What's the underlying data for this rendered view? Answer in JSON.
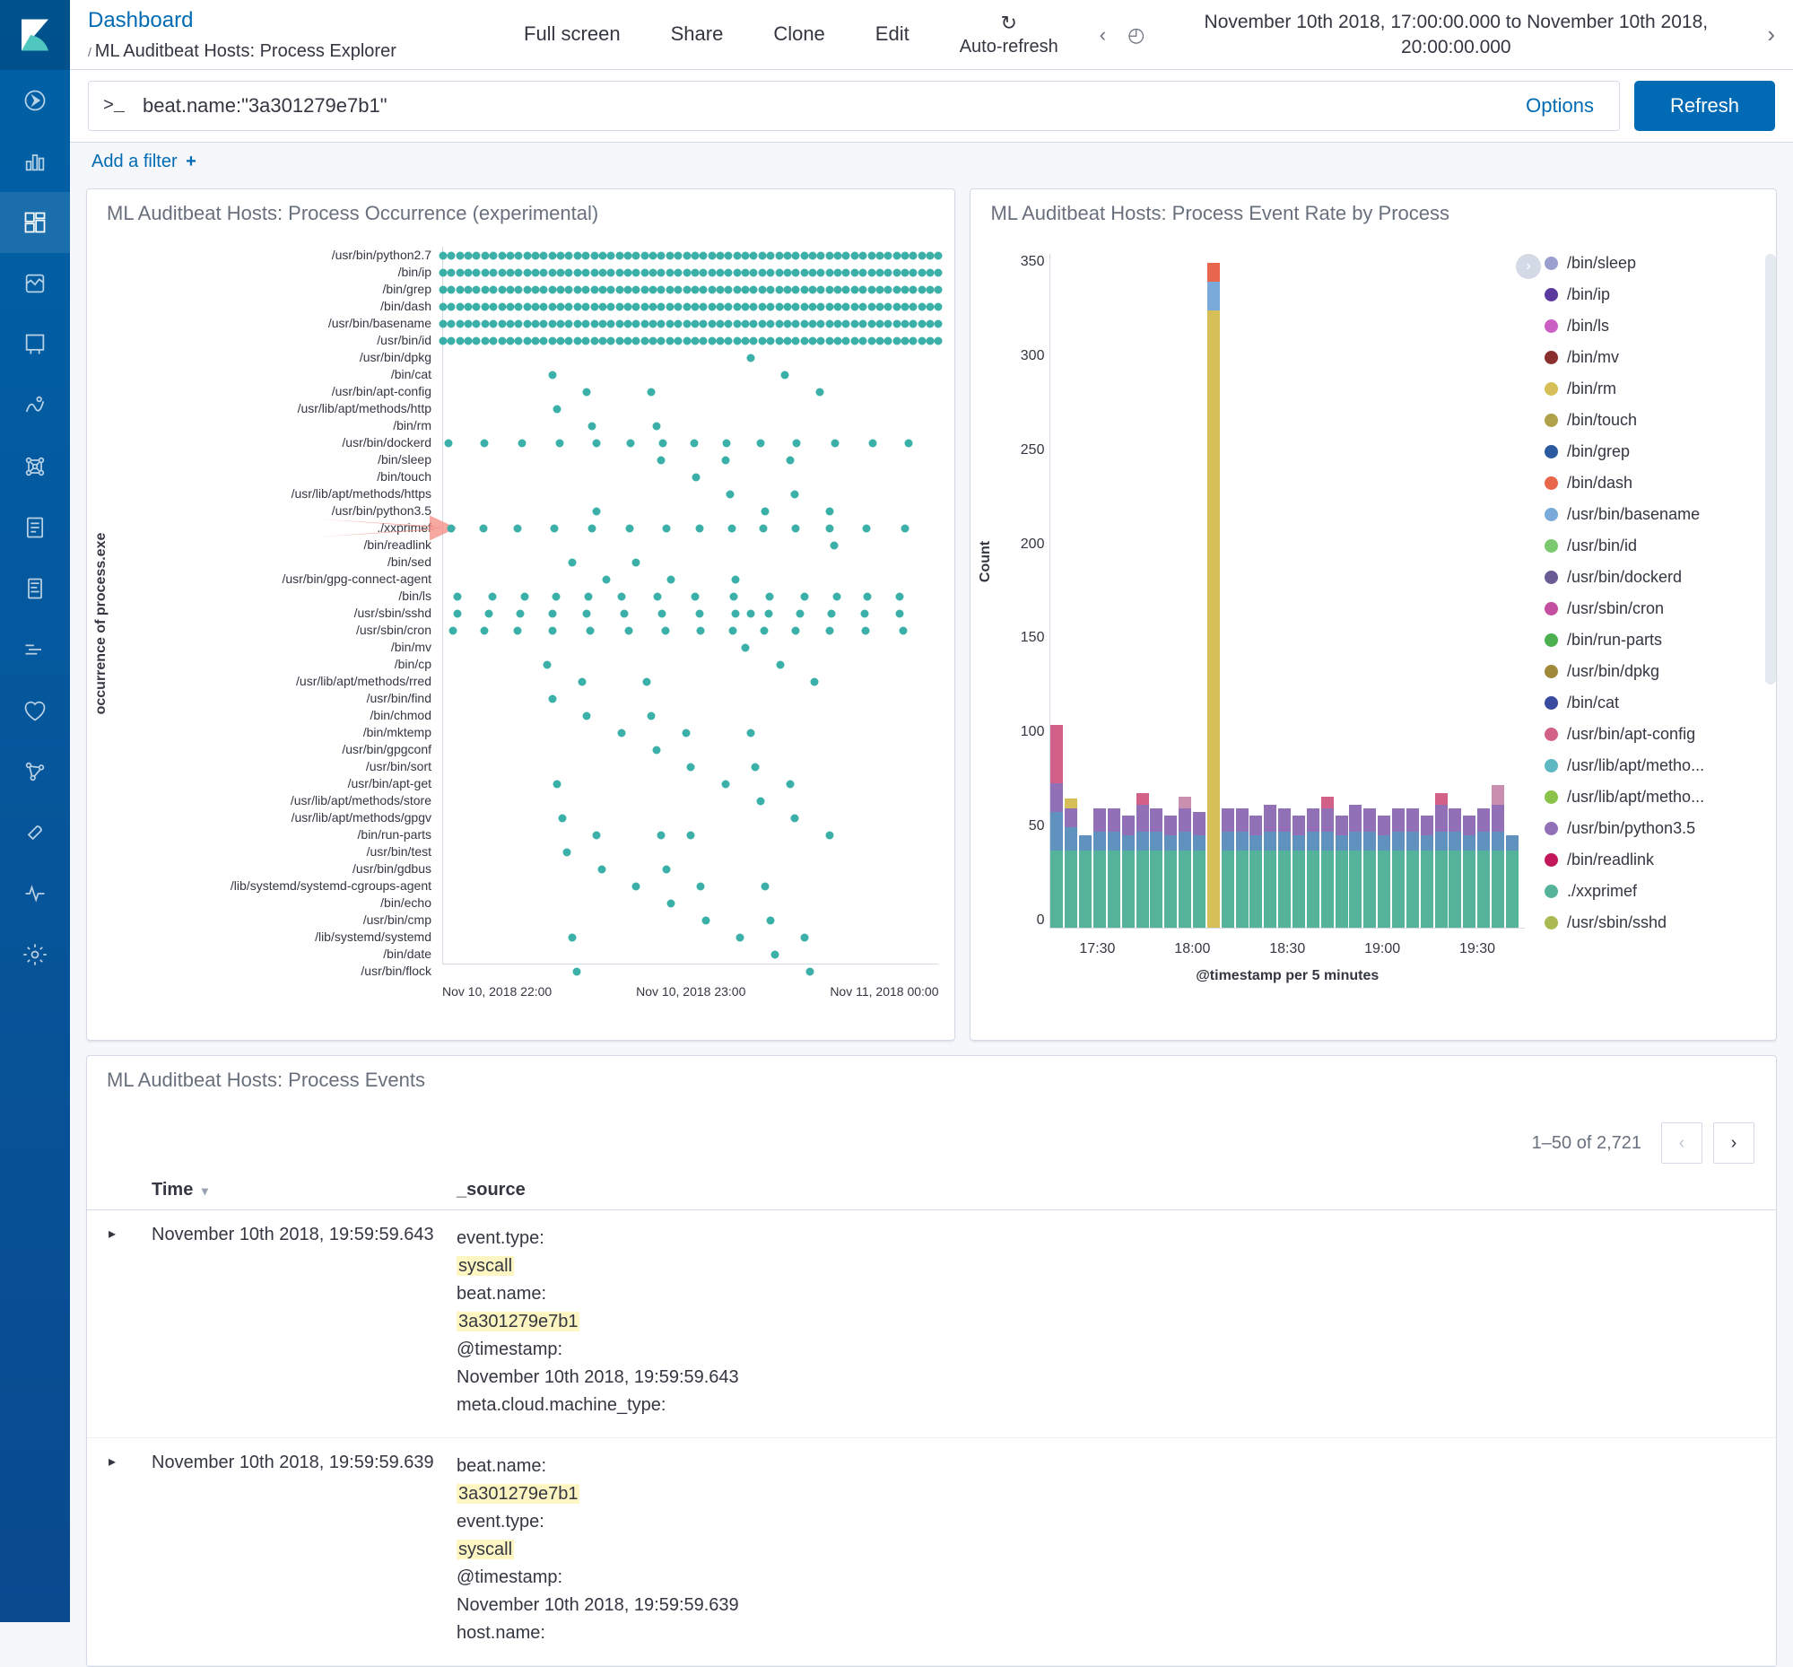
{
  "breadcrumb": {
    "root": "Dashboard",
    "slash": "/",
    "current": "ML Auditbeat Hosts: Process Explorer"
  },
  "toolbar": {
    "fullscreen": "Full screen",
    "share": "Share",
    "clone": "Clone",
    "edit": "Edit",
    "autorefresh": "Auto-refresh"
  },
  "time": {
    "range": "November 10th 2018, 17:00:00.000 to November 10th 2018, 20:00:00.000"
  },
  "query": {
    "prompt": ">_",
    "value": "beat.name:\"3a301279e7b1\"",
    "options": "Options"
  },
  "refresh_label": "Refresh",
  "filter": {
    "add": "Add a filter"
  },
  "panels": {
    "scatter_title": "ML Auditbeat Hosts: Process Occurrence (experimental)",
    "bar_title": "ML Auditbeat Hosts: Process Event Rate by Process",
    "events_title": "ML Auditbeat Hosts: Process Events"
  },
  "scatter": {
    "y_axis_title": "occurrence of process.exe",
    "y_labels": [
      "/usr/bin/python2.7",
      "/bin/ip",
      "/bin/grep",
      "/bin/dash",
      "/usr/bin/basename",
      "/usr/bin/id",
      "/usr/bin/dpkg",
      "/bin/cat",
      "/usr/bin/apt-config",
      "/usr/lib/apt/methods/http",
      "/bin/rm",
      "/usr/bin/dockerd",
      "/bin/sleep",
      "/bin/touch",
      "/usr/lib/apt/methods/https",
      "/usr/bin/python3.5",
      "./xxprimef",
      "/bin/readlink",
      "/bin/sed",
      "/usr/bin/gpg-connect-agent",
      "/bin/ls",
      "/usr/sbin/sshd",
      "/usr/sbin/cron",
      "/bin/mv",
      "/bin/cp",
      "/usr/lib/apt/methods/rred",
      "/usr/bin/find",
      "/bin/chmod",
      "/bin/mktemp",
      "/usr/bin/gpgconf",
      "/usr/bin/sort",
      "/usr/bin/apt-get",
      "/usr/lib/apt/methods/store",
      "/usr/lib/apt/methods/gpgv",
      "/bin/run-parts",
      "/usr/bin/test",
      "/usr/bin/gdbus",
      "/lib/systemd/systemd-cgroups-agent",
      "/bin/echo",
      "/usr/bin/cmp",
      "/lib/systemd/systemd",
      "/bin/date",
      "/usr/bin/flock"
    ],
    "x_labels": [
      "Nov 10, 2018 22:00",
      "Nov 10, 2018 23:00",
      "Nov 11, 2018 00:00"
    ],
    "dot_color": "#3ab0a8",
    "dense_rows": [
      0,
      1,
      2,
      3,
      4,
      5
    ],
    "mid_rows": [
      11,
      16,
      20,
      21,
      22
    ],
    "sparse_rows": [
      6,
      7,
      8,
      9,
      10,
      12,
      13,
      14,
      15,
      17,
      18,
      19,
      23,
      24,
      25,
      26,
      27,
      28,
      29,
      30,
      31,
      32,
      33,
      34,
      35,
      36,
      37,
      38,
      39,
      40,
      41,
      42
    ],
    "arrow_row": 16,
    "arrow_color": "#f38b82"
  },
  "bars": {
    "y_axis_title": "Count",
    "y_ticks": [
      "350",
      "300",
      "250",
      "200",
      "150",
      "100",
      "50",
      "0"
    ],
    "y_max": 350,
    "x_labels": [
      "17:30",
      "18:00",
      "18:30",
      "19:00",
      "19:30"
    ],
    "x_title": "@timestamp per 5 minutes",
    "columns": [
      {
        "x": 0.0,
        "segs": [
          {
            "c": "#54b399",
            "v": 40
          },
          {
            "c": "#6092c0",
            "v": 20
          },
          {
            "c": "#9170b8",
            "v": 15
          },
          {
            "c": "#d36086",
            "v": 30
          }
        ]
      },
      {
        "x": 0.03,
        "segs": [
          {
            "c": "#54b399",
            "v": 40
          },
          {
            "c": "#6092c0",
            "v": 12
          },
          {
            "c": "#9170b8",
            "v": 10
          },
          {
            "c": "#d6bf57",
            "v": 5
          }
        ]
      },
      {
        "x": 0.06,
        "segs": [
          {
            "c": "#54b399",
            "v": 40
          },
          {
            "c": "#6092c0",
            "v": 8
          }
        ]
      },
      {
        "x": 0.09,
        "segs": [
          {
            "c": "#54b399",
            "v": 40
          },
          {
            "c": "#6092c0",
            "v": 10
          },
          {
            "c": "#9170b8",
            "v": 12
          }
        ]
      },
      {
        "x": 0.12,
        "segs": [
          {
            "c": "#54b399",
            "v": 40
          },
          {
            "c": "#6092c0",
            "v": 10
          },
          {
            "c": "#9170b8",
            "v": 12
          }
        ]
      },
      {
        "x": 0.15,
        "segs": [
          {
            "c": "#54b399",
            "v": 40
          },
          {
            "c": "#6092c0",
            "v": 8
          },
          {
            "c": "#9170b8",
            "v": 10
          }
        ]
      },
      {
        "x": 0.18,
        "segs": [
          {
            "c": "#54b399",
            "v": 40
          },
          {
            "c": "#6092c0",
            "v": 10
          },
          {
            "c": "#9170b8",
            "v": 14
          },
          {
            "c": "#d36086",
            "v": 6
          }
        ]
      },
      {
        "x": 0.21,
        "segs": [
          {
            "c": "#54b399",
            "v": 40
          },
          {
            "c": "#6092c0",
            "v": 10
          },
          {
            "c": "#9170b8",
            "v": 12
          }
        ]
      },
      {
        "x": 0.24,
        "segs": [
          {
            "c": "#54b399",
            "v": 40
          },
          {
            "c": "#6092c0",
            "v": 8
          },
          {
            "c": "#9170b8",
            "v": 10
          }
        ]
      },
      {
        "x": 0.27,
        "segs": [
          {
            "c": "#54b399",
            "v": 40
          },
          {
            "c": "#6092c0",
            "v": 10
          },
          {
            "c": "#9170b8",
            "v": 12
          },
          {
            "c": "#ca8eae",
            "v": 6
          }
        ]
      },
      {
        "x": 0.3,
        "segs": [
          {
            "c": "#54b399",
            "v": 40
          },
          {
            "c": "#6092c0",
            "v": 8
          },
          {
            "c": "#9170b8",
            "v": 12
          }
        ]
      },
      {
        "x": 0.33,
        "segs": [
          {
            "c": "#d6bf57",
            "v": 320
          },
          {
            "c": "#79aad9",
            "v": 15
          },
          {
            "c": "#e7664c",
            "v": 10
          }
        ]
      },
      {
        "x": 0.36,
        "segs": [
          {
            "c": "#54b399",
            "v": 40
          },
          {
            "c": "#6092c0",
            "v": 10
          },
          {
            "c": "#9170b8",
            "v": 12
          }
        ]
      },
      {
        "x": 0.39,
        "segs": [
          {
            "c": "#54b399",
            "v": 40
          },
          {
            "c": "#6092c0",
            "v": 10
          },
          {
            "c": "#9170b8",
            "v": 12
          }
        ]
      },
      {
        "x": 0.42,
        "segs": [
          {
            "c": "#54b399",
            "v": 40
          },
          {
            "c": "#6092c0",
            "v": 8
          },
          {
            "c": "#9170b8",
            "v": 10
          }
        ]
      },
      {
        "x": 0.45,
        "segs": [
          {
            "c": "#54b399",
            "v": 40
          },
          {
            "c": "#6092c0",
            "v": 10
          },
          {
            "c": "#9170b8",
            "v": 14
          }
        ]
      },
      {
        "x": 0.48,
        "segs": [
          {
            "c": "#54b399",
            "v": 40
          },
          {
            "c": "#6092c0",
            "v": 10
          },
          {
            "c": "#9170b8",
            "v": 12
          }
        ]
      },
      {
        "x": 0.51,
        "segs": [
          {
            "c": "#54b399",
            "v": 40
          },
          {
            "c": "#6092c0",
            "v": 8
          },
          {
            "c": "#9170b8",
            "v": 10
          }
        ]
      },
      {
        "x": 0.54,
        "segs": [
          {
            "c": "#54b399",
            "v": 40
          },
          {
            "c": "#6092c0",
            "v": 10
          },
          {
            "c": "#9170b8",
            "v": 12
          }
        ]
      },
      {
        "x": 0.57,
        "segs": [
          {
            "c": "#54b399",
            "v": 40
          },
          {
            "c": "#6092c0",
            "v": 10
          },
          {
            "c": "#9170b8",
            "v": 12
          },
          {
            "c": "#d36086",
            "v": 6
          }
        ]
      },
      {
        "x": 0.6,
        "segs": [
          {
            "c": "#54b399",
            "v": 40
          },
          {
            "c": "#6092c0",
            "v": 8
          },
          {
            "c": "#9170b8",
            "v": 10
          }
        ]
      },
      {
        "x": 0.63,
        "segs": [
          {
            "c": "#54b399",
            "v": 40
          },
          {
            "c": "#6092c0",
            "v": 10
          },
          {
            "c": "#9170b8",
            "v": 14
          }
        ]
      },
      {
        "x": 0.66,
        "segs": [
          {
            "c": "#54b399",
            "v": 40
          },
          {
            "c": "#6092c0",
            "v": 10
          },
          {
            "c": "#9170b8",
            "v": 12
          }
        ]
      },
      {
        "x": 0.69,
        "segs": [
          {
            "c": "#54b399",
            "v": 40
          },
          {
            "c": "#6092c0",
            "v": 8
          },
          {
            "c": "#9170b8",
            "v": 10
          }
        ]
      },
      {
        "x": 0.72,
        "segs": [
          {
            "c": "#54b399",
            "v": 40
          },
          {
            "c": "#6092c0",
            "v": 10
          },
          {
            "c": "#9170b8",
            "v": 12
          }
        ]
      },
      {
        "x": 0.75,
        "segs": [
          {
            "c": "#54b399",
            "v": 40
          },
          {
            "c": "#6092c0",
            "v": 10
          },
          {
            "c": "#9170b8",
            "v": 12
          }
        ]
      },
      {
        "x": 0.78,
        "segs": [
          {
            "c": "#54b399",
            "v": 40
          },
          {
            "c": "#6092c0",
            "v": 8
          },
          {
            "c": "#9170b8",
            "v": 10
          }
        ]
      },
      {
        "x": 0.81,
        "segs": [
          {
            "c": "#54b399",
            "v": 40
          },
          {
            "c": "#6092c0",
            "v": 10
          },
          {
            "c": "#9170b8",
            "v": 14
          },
          {
            "c": "#d36086",
            "v": 6
          }
        ]
      },
      {
        "x": 0.84,
        "segs": [
          {
            "c": "#54b399",
            "v": 40
          },
          {
            "c": "#6092c0",
            "v": 10
          },
          {
            "c": "#9170b8",
            "v": 12
          }
        ]
      },
      {
        "x": 0.87,
        "segs": [
          {
            "c": "#54b399",
            "v": 40
          },
          {
            "c": "#6092c0",
            "v": 8
          },
          {
            "c": "#9170b8",
            "v": 10
          }
        ]
      },
      {
        "x": 0.9,
        "segs": [
          {
            "c": "#54b399",
            "v": 40
          },
          {
            "c": "#6092c0",
            "v": 10
          },
          {
            "c": "#9170b8",
            "v": 12
          }
        ]
      },
      {
        "x": 0.93,
        "segs": [
          {
            "c": "#54b399",
            "v": 40
          },
          {
            "c": "#6092c0",
            "v": 10
          },
          {
            "c": "#9170b8",
            "v": 14
          },
          {
            "c": "#ca8eae",
            "v": 10
          }
        ]
      },
      {
        "x": 0.96,
        "segs": [
          {
            "c": "#54b399",
            "v": 40
          },
          {
            "c": "#6092c0",
            "v": 8
          }
        ]
      }
    ],
    "legend": [
      {
        "color": "#9a9fd0",
        "label": "/bin/sleep"
      },
      {
        "color": "#5a3a9e",
        "label": "/bin/ip"
      },
      {
        "color": "#ca5fc4",
        "label": "/bin/ls"
      },
      {
        "color": "#8b2e2e",
        "label": "/bin/mv"
      },
      {
        "color": "#d6bf57",
        "label": "/bin/rm"
      },
      {
        "color": "#b0a24a",
        "label": "/bin/touch"
      },
      {
        "color": "#2c5aa0",
        "label": "/bin/grep"
      },
      {
        "color": "#e7664c",
        "label": "/bin/dash"
      },
      {
        "color": "#79aad9",
        "label": "/usr/bin/basename"
      },
      {
        "color": "#7bc96f",
        "label": "/usr/bin/id"
      },
      {
        "color": "#6b5b95",
        "label": "/usr/bin/dockerd"
      },
      {
        "color": "#c44ea0",
        "label": "/usr/sbin/cron"
      },
      {
        "color": "#4caf50",
        "label": "/bin/run-parts"
      },
      {
        "color": "#a08a3a",
        "label": "/usr/bin/dpkg"
      },
      {
        "color": "#3a4a9e",
        "label": "/bin/cat"
      },
      {
        "color": "#d36086",
        "label": "/usr/bin/apt-config"
      },
      {
        "color": "#5db8c2",
        "label": "/usr/lib/apt/metho..."
      },
      {
        "color": "#8bc34a",
        "label": "/usr/lib/apt/metho..."
      },
      {
        "color": "#9170b8",
        "label": "/usr/bin/python3.5"
      },
      {
        "color": "#c2185b",
        "label": "/bin/readlink"
      },
      {
        "color": "#54b399",
        "label": "./xxprimef"
      },
      {
        "color": "#aab950",
        "label": "/usr/sbin/sshd"
      }
    ]
  },
  "events": {
    "pager": "1–50 of 2,721",
    "columns": {
      "time": "Time",
      "source": "_source"
    },
    "rows": [
      {
        "time": "November 10th 2018, 19:59:59.643",
        "fields": [
          {
            "k": "event.type:",
            "v": "syscall",
            "hl": true
          },
          {
            "k": "beat.name:",
            "v": "3a301279e7b1",
            "hl": true
          },
          {
            "k": "@timestamp:",
            "v": "November 10th 2018, 19:59:59.643",
            "hl": false
          },
          {
            "k": "meta.cloud.machine_type:",
            "v": "",
            "hl": false
          }
        ]
      },
      {
        "time": "November 10th 2018, 19:59:59.639",
        "fields": [
          {
            "k": "beat.name:",
            "v": "3a301279e7b1",
            "hl": true
          },
          {
            "k": "event.type:",
            "v": "syscall",
            "hl": true
          },
          {
            "k": "@timestamp:",
            "v": "November 10th 2018, 19:59:59.639",
            "hl": false
          },
          {
            "k": "host.name:",
            "v": "",
            "hl": false
          }
        ]
      }
    ]
  }
}
